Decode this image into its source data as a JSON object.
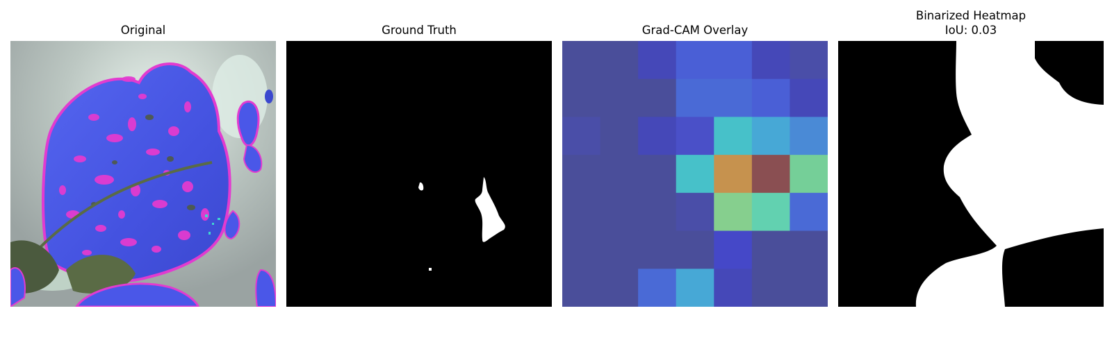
{
  "panels": [
    {
      "title": "Original",
      "image": "leaf-photo-false-color"
    },
    {
      "title": "Ground Truth",
      "image": "ground-truth-mask"
    },
    {
      "title": "Grad-CAM Overlay",
      "image": "gradcam-heatmap-overlay"
    },
    {
      "title": "Binarized Heatmap",
      "subtitle": "IoU: 0.03",
      "image": "binarized-heatmap-mask"
    }
  ],
  "colors": {
    "background": "#ffffff",
    "mask_foreground": "#ffffff",
    "mask_background": "#000000",
    "leaf_blue": "#4a57e8",
    "leaf_magenta": "#e23bd0",
    "leaf_backdrop": "#a9b3b0"
  }
}
